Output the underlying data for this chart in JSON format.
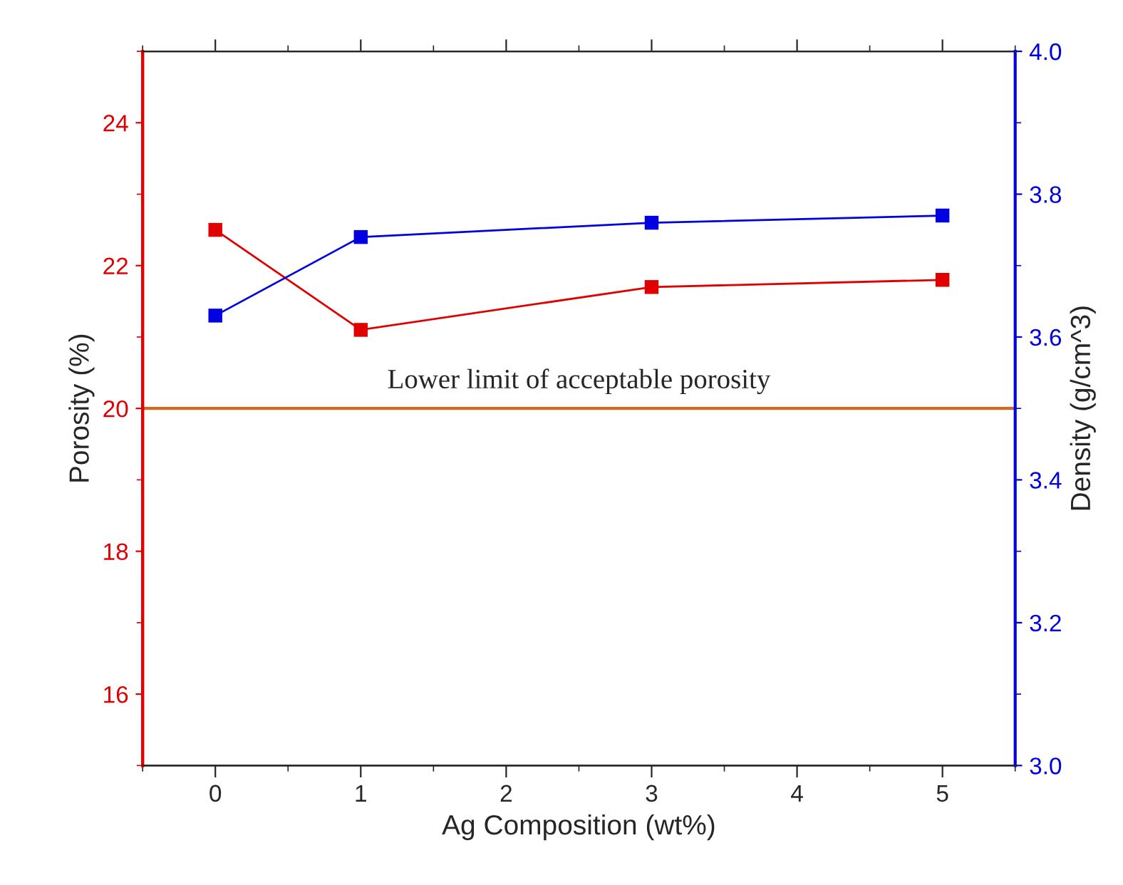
{
  "chart_data": {
    "type": "line",
    "xlabel": "Ag Composition (wt%)",
    "ylabel": "Porosity (%)",
    "y2label": "Density (g/cm^3)",
    "x": [
      0,
      1,
      3,
      5
    ],
    "series": [
      {
        "name": null,
        "color": "#e00000",
        "values": [
          22.5,
          21.1,
          21.7,
          21.8
        ]
      },
      {
        "name": null,
        "color": "#0000e0",
        "values": [
          3.63,
          3.74,
          3.76,
          3.77
        ],
        "axis": "y2"
      }
    ],
    "xlim": [
      -0.5,
      5.5
    ],
    "xticks": [
      0,
      1,
      2,
      3,
      4,
      5
    ],
    "ylim": [
      15,
      25
    ],
    "yticks": [
      16,
      18,
      20,
      22,
      24
    ],
    "y2lim": [
      3.0,
      4.0
    ],
    "y2ticks": [
      {
        "value": 3.0,
        "label": "3.0"
      },
      3.2,
      3.4,
      3.6,
      3.8,
      {
        "value": 4.0,
        "label": "4.0"
      }
    ],
    "ref_lines": [
      {
        "axis": "y",
        "value": 20,
        "label": "Lower limit of acceptable porosity",
        "color": "#d2691e",
        "line_style": "solid"
      }
    ],
    "marker": "square",
    "line_style": "solid",
    "grid": false
  }
}
